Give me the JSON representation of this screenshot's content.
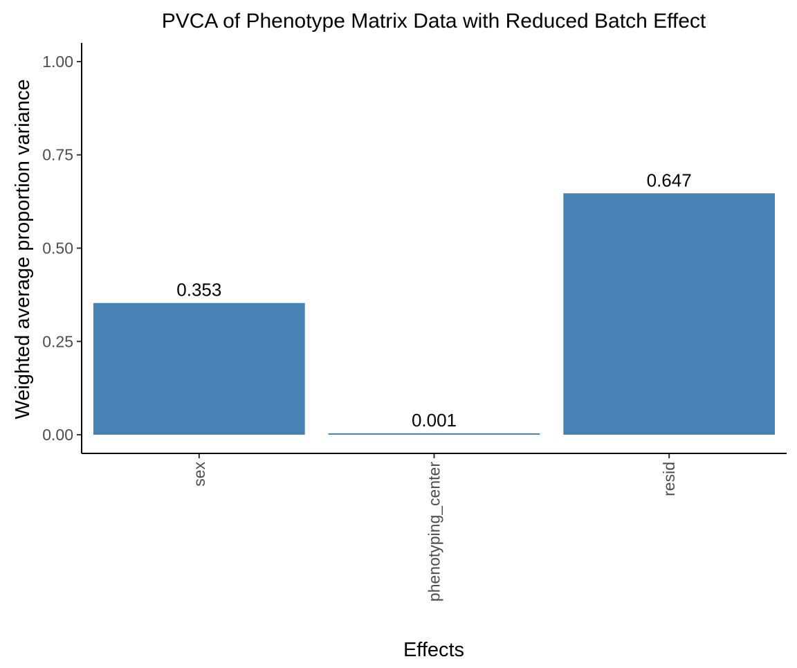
{
  "chart_data": {
    "type": "bar",
    "title": "PVCA of Phenotype Matrix Data with Reduced Batch Effect",
    "xlabel": "Effects",
    "ylabel": "Weighted average proportion variance",
    "categories": [
      "sex",
      "phenotyping_center",
      "resid"
    ],
    "values": [
      0.353,
      0.001,
      0.647
    ],
    "value_labels": [
      "0.353",
      "0.001",
      "0.647"
    ],
    "ylim": [
      -0.05,
      1.05
    ],
    "yticks": [
      0,
      0.25,
      0.5,
      0.75,
      1.0
    ],
    "ytick_labels": [
      "0.00",
      "0.25",
      "0.50",
      "0.75",
      "1.00"
    ],
    "bar_color": "#4682b4",
    "grid": false,
    "legend": "none"
  }
}
